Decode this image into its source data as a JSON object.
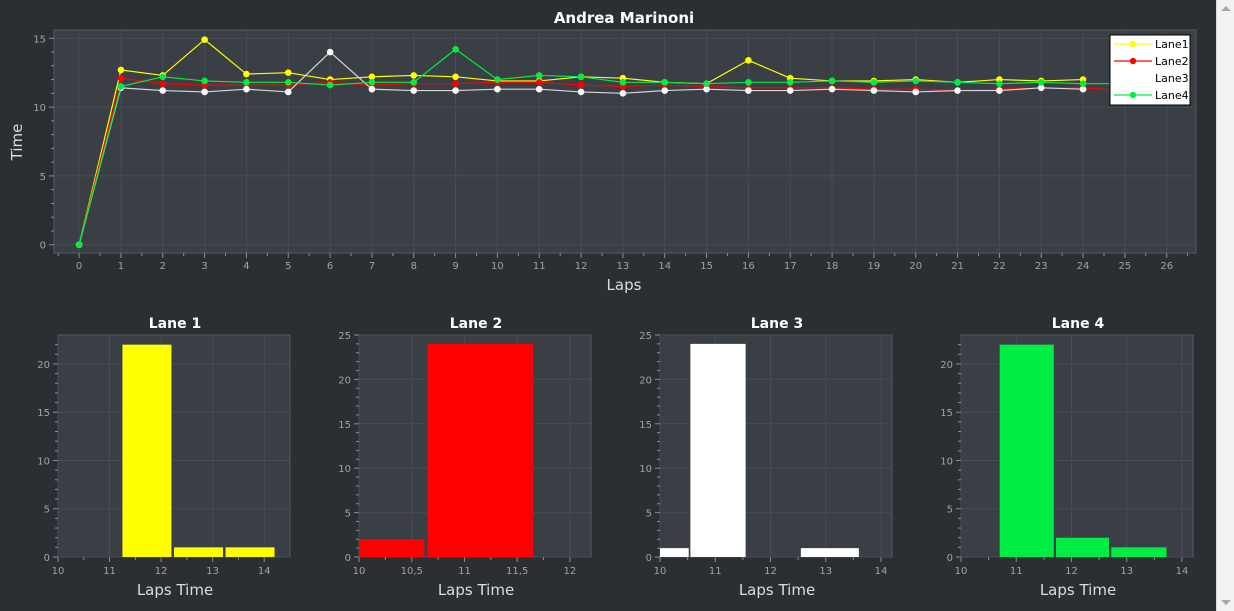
{
  "colors": {
    "background": "#2b2f33",
    "plot_background": "#3a3f46",
    "grid": "#474d55",
    "axis": "#8a8f95",
    "tick_text": "#9ea3a9",
    "lane1": "#ffff00",
    "lane2": "#ff0000",
    "lane3": "#ffffff",
    "lane4": "#00ee44",
    "lane3_line": "#d8d8d8"
  },
  "chart_data": [
    {
      "type": "line",
      "title": "Andrea Marinoni",
      "xlabel": "Laps",
      "ylabel": "Time",
      "xlim": [
        -0.6,
        26.7
      ],
      "ylim": [
        -0.6,
        15.6
      ],
      "xticks": [
        "0",
        "1",
        "2",
        "3",
        "4",
        "5",
        "6",
        "7",
        "8",
        "9",
        "10",
        "11",
        "12",
        "13",
        "14",
        "15",
        "16",
        "17",
        "18",
        "19",
        "20",
        "21",
        "22",
        "23",
        "24",
        "25",
        "26"
      ],
      "yticks": [
        "0",
        "5",
        "10",
        "15"
      ],
      "legend_position": "top-right",
      "grid": true,
      "series": [
        {
          "name": "Lane1",
          "color": "#ffff00",
          "x": [
            0,
            1,
            2,
            3,
            4,
            5,
            6,
            7,
            8,
            9,
            10,
            11,
            12,
            13,
            14,
            15,
            16,
            17,
            18,
            19,
            20,
            21,
            22,
            23,
            24
          ],
          "values": [
            0,
            12.7,
            12.3,
            14.9,
            12.4,
            12.5,
            12.0,
            12.2,
            12.3,
            12.2,
            11.9,
            11.9,
            12.2,
            12.1,
            11.8,
            11.7,
            13.4,
            12.1,
            11.9,
            11.9,
            12.0,
            11.8,
            12.0,
            11.9,
            12.0
          ]
        },
        {
          "name": "Lane2",
          "color": "#ff0000",
          "x": [
            0,
            1,
            2,
            3,
            4,
            5,
            6,
            7,
            8,
            9,
            10,
            11,
            12,
            13,
            14,
            15,
            16,
            17,
            18,
            19,
            20,
            21,
            22,
            23,
            24,
            25
          ],
          "values": [
            0,
            12.1,
            11.7,
            11.6,
            11.6,
            11.6,
            11.8,
            11.6,
            11.7,
            11.7,
            11.8,
            11.8,
            11.6,
            11.5,
            11.6,
            11.5,
            11.4,
            11.4,
            11.4,
            11.3,
            11.3,
            11.2,
            11.3,
            11.4,
            11.4,
            11.2
          ]
        },
        {
          "name": "Lane3",
          "color": "#ffffff",
          "x": [
            0,
            1,
            2,
            3,
            4,
            5,
            6,
            7,
            8,
            9,
            10,
            11,
            12,
            13,
            14,
            15,
            16,
            17,
            18,
            19,
            20,
            21,
            22,
            23,
            24
          ],
          "values": [
            0,
            11.4,
            11.2,
            11.1,
            11.3,
            11.1,
            14.0,
            11.3,
            11.2,
            11.2,
            11.3,
            11.3,
            11.1,
            11.0,
            11.2,
            11.3,
            11.2,
            11.2,
            11.3,
            11.2,
            11.1,
            11.2,
            11.2,
            11.4,
            11.3
          ]
        },
        {
          "name": "Lane4",
          "color": "#00ee44",
          "x": [
            0,
            1,
            2,
            3,
            4,
            5,
            6,
            7,
            8,
            9,
            10,
            11,
            12,
            13,
            14,
            15,
            16,
            17,
            18,
            19,
            20,
            21,
            22,
            23,
            24,
            25
          ],
          "values": [
            0,
            11.5,
            12.2,
            11.9,
            11.8,
            11.8,
            11.6,
            11.8,
            11.8,
            14.2,
            12.0,
            12.3,
            12.2,
            11.8,
            11.8,
            11.7,
            11.8,
            11.8,
            11.9,
            11.8,
            11.9,
            11.8,
            11.7,
            11.8,
            11.7,
            11.7
          ]
        }
      ]
    },
    {
      "type": "bar",
      "title": "Lane 1",
      "xlabel": "Laps Time",
      "color": "#ffff00",
      "xlim": [
        10,
        14.5
      ],
      "ylim": [
        0,
        23
      ],
      "xticks": [
        "10",
        "11",
        "12",
        "13",
        "14"
      ],
      "yticks": [
        "0",
        "5",
        "10",
        "15",
        "20"
      ],
      "bins": [
        {
          "from": 11.25,
          "to": 12.2,
          "count": 22
        },
        {
          "from": 12.25,
          "to": 13.2,
          "count": 1
        },
        {
          "from": 13.25,
          "to": 14.2,
          "count": 1
        }
      ]
    },
    {
      "type": "bar",
      "title": "Lane 2",
      "xlabel": "Laps Time",
      "color": "#ff0000",
      "xlim": [
        10,
        12.2
      ],
      "ylim": [
        0,
        25
      ],
      "xticks": [
        "10",
        "10,5",
        "11",
        "11,5",
        "12"
      ],
      "yticks": [
        "0",
        "5",
        "10",
        "15",
        "20",
        "25"
      ],
      "bins": [
        {
          "from": 10,
          "to": 10.62,
          "count": 2
        },
        {
          "from": 10.65,
          "to": 11.65,
          "count": 24
        }
      ]
    },
    {
      "type": "bar",
      "title": "Lane 3",
      "xlabel": "Laps Time",
      "color": "#ffffff",
      "xlim": [
        10,
        14.2
      ],
      "ylim": [
        0,
        25
      ],
      "xticks": [
        "10",
        "11",
        "12",
        "13",
        "14"
      ],
      "yticks": [
        "0",
        "5",
        "10",
        "15",
        "20",
        "25"
      ],
      "bins": [
        {
          "from": 10,
          "to": 10.52,
          "count": 1
        },
        {
          "from": 10.55,
          "to": 11.55,
          "count": 24
        },
        {
          "from": 12.55,
          "to": 13.6,
          "count": 1
        }
      ]
    },
    {
      "type": "bar",
      "title": "Lane 4",
      "xlabel": "Laps Time",
      "color": "#00ee44",
      "xlim": [
        10,
        14.2
      ],
      "ylim": [
        0,
        23
      ],
      "xticks": [
        "10",
        "11",
        "12",
        "13",
        "14"
      ],
      "yticks": [
        "0",
        "5",
        "10",
        "15",
        "20"
      ],
      "bins": [
        {
          "from": 10.7,
          "to": 11.68,
          "count": 22
        },
        {
          "from": 11.72,
          "to": 12.68,
          "count": 2
        },
        {
          "from": 12.72,
          "to": 13.72,
          "count": 1
        }
      ]
    }
  ]
}
